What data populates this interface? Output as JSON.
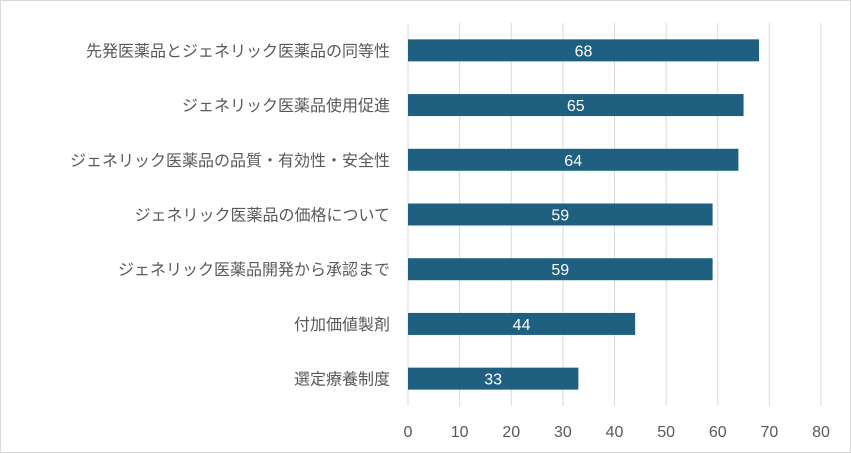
{
  "chart_data": {
    "type": "bar",
    "orientation": "horizontal",
    "categories": [
      "先発医薬品とジェネリック医薬品の同等性",
      "ジェネリック医薬品使用促進",
      "ジェネリック医薬品の品質・有効性・安全性",
      "ジェネリック医薬品の価格について",
      "ジェネリック医薬品開発から承認まで",
      "付加価値製剤",
      "選定療養制度"
    ],
    "values": [
      68,
      65,
      64,
      59,
      59,
      44,
      33
    ],
    "data_labels": [
      "68",
      "65",
      "64",
      "59",
      "59",
      "44",
      "33"
    ],
    "x_ticks": [
      "0",
      "10",
      "20",
      "30",
      "40",
      "50",
      "60",
      "70",
      "80"
    ],
    "xlim": [
      0,
      80
    ],
    "grid": "vertical",
    "legend": "none",
    "bar_color": "#1f5f7f"
  }
}
